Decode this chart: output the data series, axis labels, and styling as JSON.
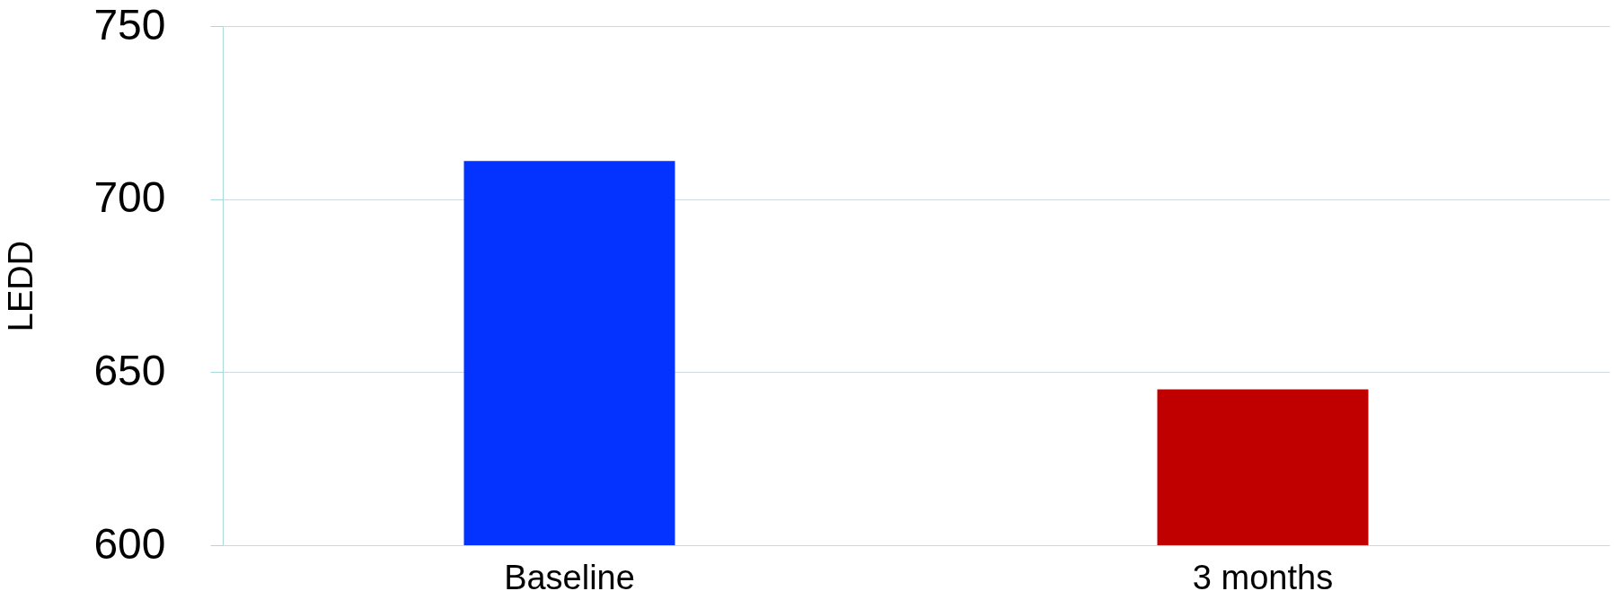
{
  "chart_data": {
    "type": "bar",
    "ylabel": "LEDD",
    "categories": [
      "Baseline",
      "3 months"
    ],
    "values": [
      711,
      645
    ],
    "colors": [
      "#0433ff",
      "#c00000"
    ],
    "ylim": [
      600,
      750
    ],
    "yticks": [
      600,
      650,
      700,
      750
    ],
    "grid": "y"
  }
}
